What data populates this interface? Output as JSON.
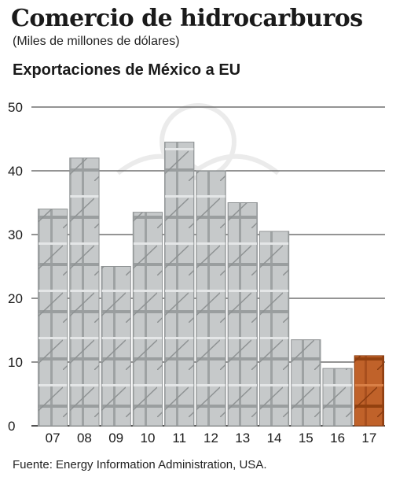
{
  "header": {
    "title": "Comercio de hidrocarburos",
    "subtitle": "(Miles de millones de dólares)"
  },
  "footer": {
    "source": "Fuente: Energy Information Administration, USA."
  },
  "colors": {
    "bar": "#c4c7c8",
    "bar_highlight": "#c0622a",
    "grid": "#555555",
    "axis": "#1a1a1a"
  },
  "chart_data": {
    "type": "bar",
    "title": "Exportaciones de México a EU",
    "categories": [
      "07",
      "08",
      "09",
      "10",
      "11",
      "12",
      "13",
      "14",
      "15",
      "16",
      "17"
    ],
    "values": [
      34,
      42,
      25,
      33.5,
      44.5,
      40,
      35,
      30.5,
      13.5,
      9,
      11
    ],
    "highlight": [
      "17"
    ],
    "yticks": [
      0,
      10,
      20,
      30,
      40,
      50
    ],
    "ylim": [
      0,
      50
    ],
    "grid": true
  }
}
